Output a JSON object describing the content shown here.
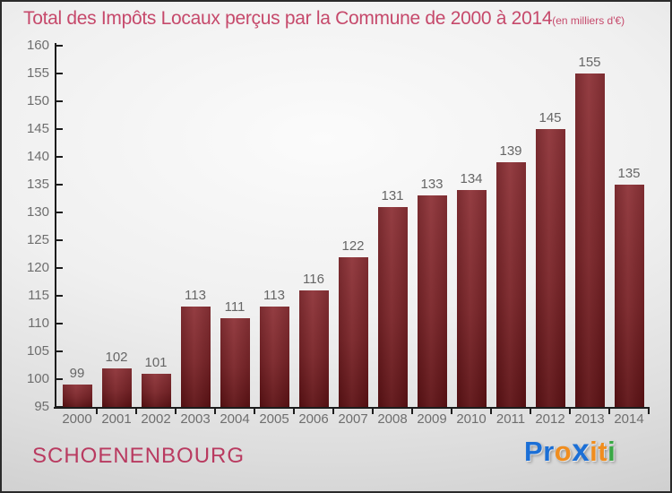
{
  "title": {
    "main": "Total des Impôts Locaux perçus par la Commune de 2000 à 2014",
    "subtitle": "(en milliers d'€)"
  },
  "chart_data": {
    "type": "bar",
    "title": "Total des Impôts Locaux perçus par la Commune de 2000 à 2014",
    "subtitle": "(en milliers d'€)",
    "unit": "milliers d'€",
    "categories": [
      "2000",
      "2001",
      "2002",
      "2003",
      "2004",
      "2005",
      "2006",
      "2007",
      "2008",
      "2009",
      "2010",
      "2011",
      "2012",
      "2013",
      "2014"
    ],
    "values": [
      99,
      102,
      101,
      113,
      111,
      113,
      116,
      122,
      131,
      133,
      134,
      139,
      145,
      155,
      135
    ],
    "xlabel": "",
    "ylabel": "",
    "ylim": [
      95,
      160
    ],
    "ytick_step": 5,
    "grid": false,
    "legend": false,
    "value_labels": true
  },
  "footer": {
    "commune": "SCHOENENBOURG",
    "logo": {
      "text": "Proxiti",
      "letters": [
        {
          "char": "P",
          "color": "#1b6fd6"
        },
        {
          "char": "r",
          "color": "#1b6fd6"
        },
        {
          "char": "o",
          "color": "#f08d1e"
        },
        {
          "char": "x",
          "color": "#1b6fd6"
        },
        {
          "char": "i",
          "color": "#f08d1e"
        },
        {
          "char": "t",
          "color": "#f08d1e"
        },
        {
          "char": "i",
          "color": "#3aa845"
        }
      ]
    }
  },
  "colors": {
    "title": "#c6496b",
    "commune": "#b93a60",
    "axis": "#1c1c1c",
    "tick_labels": "#6e6e6e",
    "value_labels": "#666666",
    "bar_top": "#8e3338",
    "bar_bottom": "#5e1215"
  }
}
